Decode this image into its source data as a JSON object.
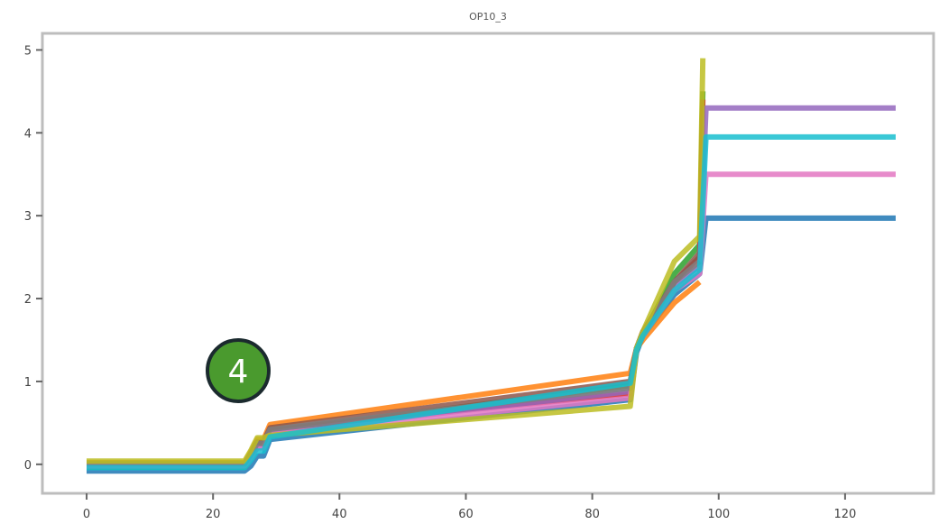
{
  "chart_data": {
    "type": "line",
    "title": "OP10_3",
    "xlabel": "",
    "ylabel": "",
    "xlim": [
      -7,
      134
    ],
    "ylim": [
      -0.35,
      5.2
    ],
    "xticks": [
      0,
      20,
      40,
      60,
      80,
      100,
      120
    ],
    "yticks": [
      0,
      1,
      2,
      3,
      4,
      5
    ],
    "grid": false,
    "legend": "none",
    "series": [
      {
        "color": "#1f77b4",
        "x": [
          0,
          25,
          26,
          27,
          28,
          29,
          86,
          87,
          88,
          93,
          97,
          98,
          128
        ],
        "y": [
          -0.08,
          -0.08,
          -0.02,
          0.1,
          0.1,
          0.3,
          0.78,
          1.35,
          1.55,
          2.05,
          2.3,
          2.97,
          2.97
        ]
      },
      {
        "color": "#ff7f0e",
        "x": [
          0,
          25,
          26,
          27,
          28,
          29,
          86,
          87,
          88,
          93,
          97
        ],
        "y": [
          0.02,
          0.02,
          0.15,
          0.3,
          0.3,
          0.48,
          1.1,
          1.4,
          1.5,
          1.95,
          2.2
        ]
      },
      {
        "color": "#2ca02c",
        "x": [
          0,
          25,
          26,
          27,
          28,
          29,
          86,
          87,
          88,
          93,
          97,
          97.5
        ],
        "y": [
          -0.03,
          -0.03,
          0.1,
          0.22,
          0.22,
          0.4,
          0.95,
          1.4,
          1.55,
          2.3,
          2.65,
          4.5
        ]
      },
      {
        "color": "#d62728",
        "x": [
          0,
          25,
          26,
          27,
          28,
          29,
          86,
          87,
          88,
          93,
          97,
          97.5
        ],
        "y": [
          -0.02,
          -0.02,
          0.12,
          0.25,
          0.25,
          0.42,
          0.85,
          1.4,
          1.6,
          2.2,
          2.5,
          4.4
        ]
      },
      {
        "color": "#9467bd",
        "x": [
          0,
          25,
          26,
          27,
          28,
          29,
          86,
          87,
          88,
          93,
          97,
          98,
          128
        ],
        "y": [
          -0.01,
          -0.01,
          0.1,
          0.2,
          0.2,
          0.38,
          0.88,
          1.4,
          1.6,
          2.15,
          2.4,
          4.3,
          4.3
        ]
      },
      {
        "color": "#8c564b",
        "x": [
          0,
          25,
          26,
          27,
          28,
          29,
          86,
          87,
          88,
          93,
          97
        ],
        "y": [
          0.0,
          0.0,
          0.13,
          0.27,
          0.27,
          0.44,
          1.0,
          1.4,
          1.6,
          2.2,
          2.55
        ]
      },
      {
        "color": "#e377c2",
        "x": [
          0,
          25,
          26,
          27,
          28,
          29,
          86,
          87,
          88,
          93,
          97,
          98,
          128
        ],
        "y": [
          -0.02,
          -0.02,
          0.08,
          0.2,
          0.2,
          0.36,
          0.8,
          1.4,
          1.55,
          2.1,
          2.3,
          3.5,
          3.5
        ]
      },
      {
        "color": "#7f7f7f",
        "x": [
          0,
          25,
          26,
          27,
          28,
          29,
          86,
          87,
          88,
          93,
          97
        ],
        "y": [
          0.01,
          0.01,
          0.12,
          0.25,
          0.25,
          0.42,
          0.92,
          1.4,
          1.58,
          2.2,
          2.45
        ]
      },
      {
        "color": "#bcbd22",
        "x": [
          0,
          25,
          26,
          27,
          28,
          29,
          86,
          87,
          88,
          93,
          97,
          97.5
        ],
        "y": [
          0.04,
          0.04,
          0.17,
          0.32,
          0.32,
          0.35,
          0.7,
          1.4,
          1.6,
          2.45,
          2.75,
          4.9
        ]
      },
      {
        "color": "#17becf",
        "x": [
          0,
          25,
          26,
          27,
          28,
          29,
          86,
          87,
          88,
          93,
          97,
          98,
          128
        ],
        "y": [
          -0.04,
          -0.04,
          0.05,
          0.16,
          0.16,
          0.33,
          0.98,
          1.38,
          1.55,
          2.1,
          2.35,
          3.95,
          3.95
        ]
      }
    ]
  },
  "overlay": {
    "badge_label": "4",
    "badge_color": "#4a9a2e",
    "badge_border": "#1b2a2e"
  }
}
